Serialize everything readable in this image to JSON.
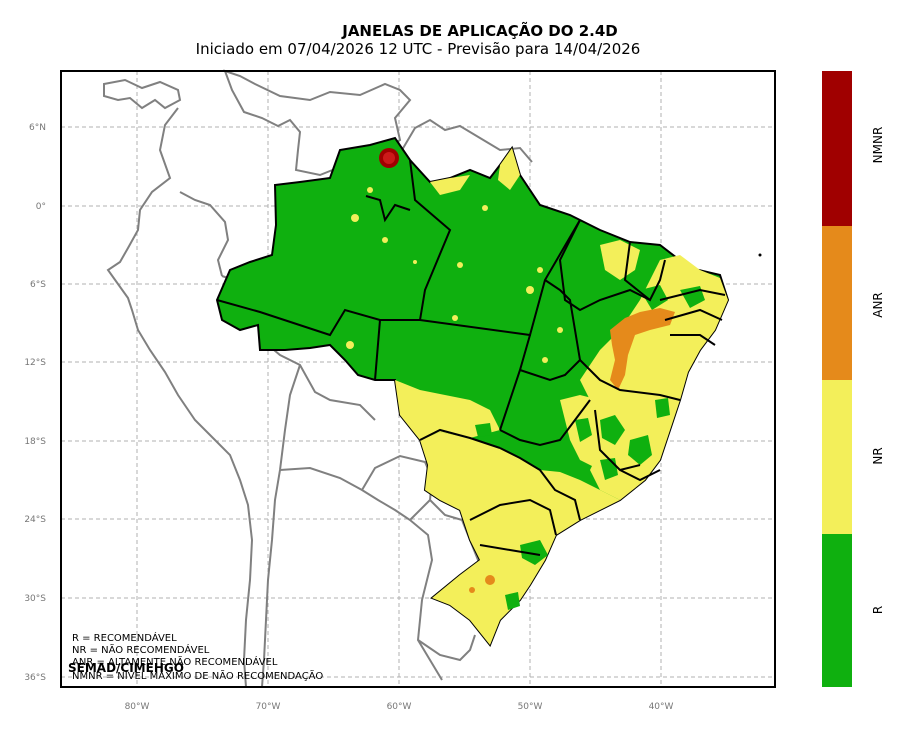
{
  "title": "JANELAS DE APLICAÇÃO DO 2.4D",
  "subtitle": "Iniciado em 07/04/2026 12 UTC - Previsão para 14/04/2026",
  "lat_ticks": [
    "6°N",
    "0°",
    "6°S",
    "12°S",
    "18°S",
    "24°S",
    "30°S",
    "36°S"
  ],
  "lon_ticks": [
    "80°W",
    "70°W",
    "60°W",
    "50°W",
    "40°W"
  ],
  "categories": [
    {
      "code": "NMNR",
      "color": "#a00000"
    },
    {
      "code": "ANR",
      "color": "#e58a1b"
    },
    {
      "code": "NR",
      "color": "#f3ef5a"
    },
    {
      "code": "R",
      "color": "#0fb00f"
    }
  ],
  "legend_lines": [
    "R = RECOMENDÁVEL",
    "NR = NÃO RECOMENDÁVEL",
    "ANR = ALTAMENTE NÃO RECOMENDÁVEL",
    "NMNR = NÍVEL MÁXIMO DE NÃO RECOMENDAÇÃO"
  ],
  "credit": "SEMAD/CIMEHGO",
  "colors": {
    "grid": "#b0b0b0",
    "country_border": "#808080",
    "state_border": "#000000"
  }
}
